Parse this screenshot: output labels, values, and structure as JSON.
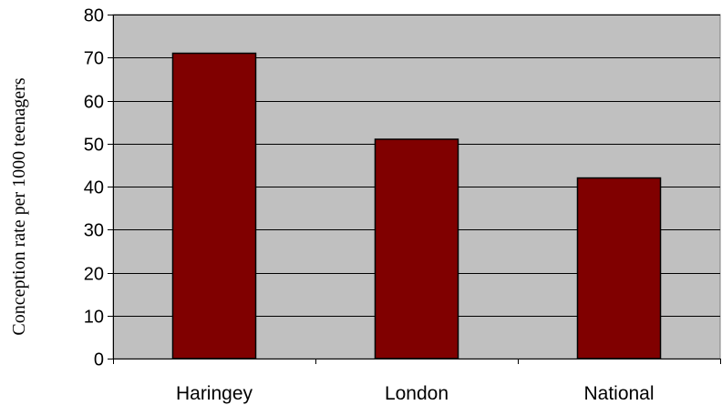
{
  "chart_data": {
    "type": "bar",
    "title": "",
    "xlabel": "",
    "ylabel": "Conception rate per 1000 teenagers",
    "categories": [
      "Haringey",
      "London",
      "National"
    ],
    "values": [
      71,
      51,
      42
    ],
    "ylim": [
      0,
      80
    ],
    "yticks": [
      0,
      10,
      20,
      30,
      40,
      50,
      60,
      70,
      80
    ],
    "grid": "horizontal",
    "legend": "none",
    "colors": {
      "plot_background": "#c0c0c0",
      "bar_fill": "#800000",
      "bar_stroke": "#000000",
      "grid": "#000000"
    }
  }
}
